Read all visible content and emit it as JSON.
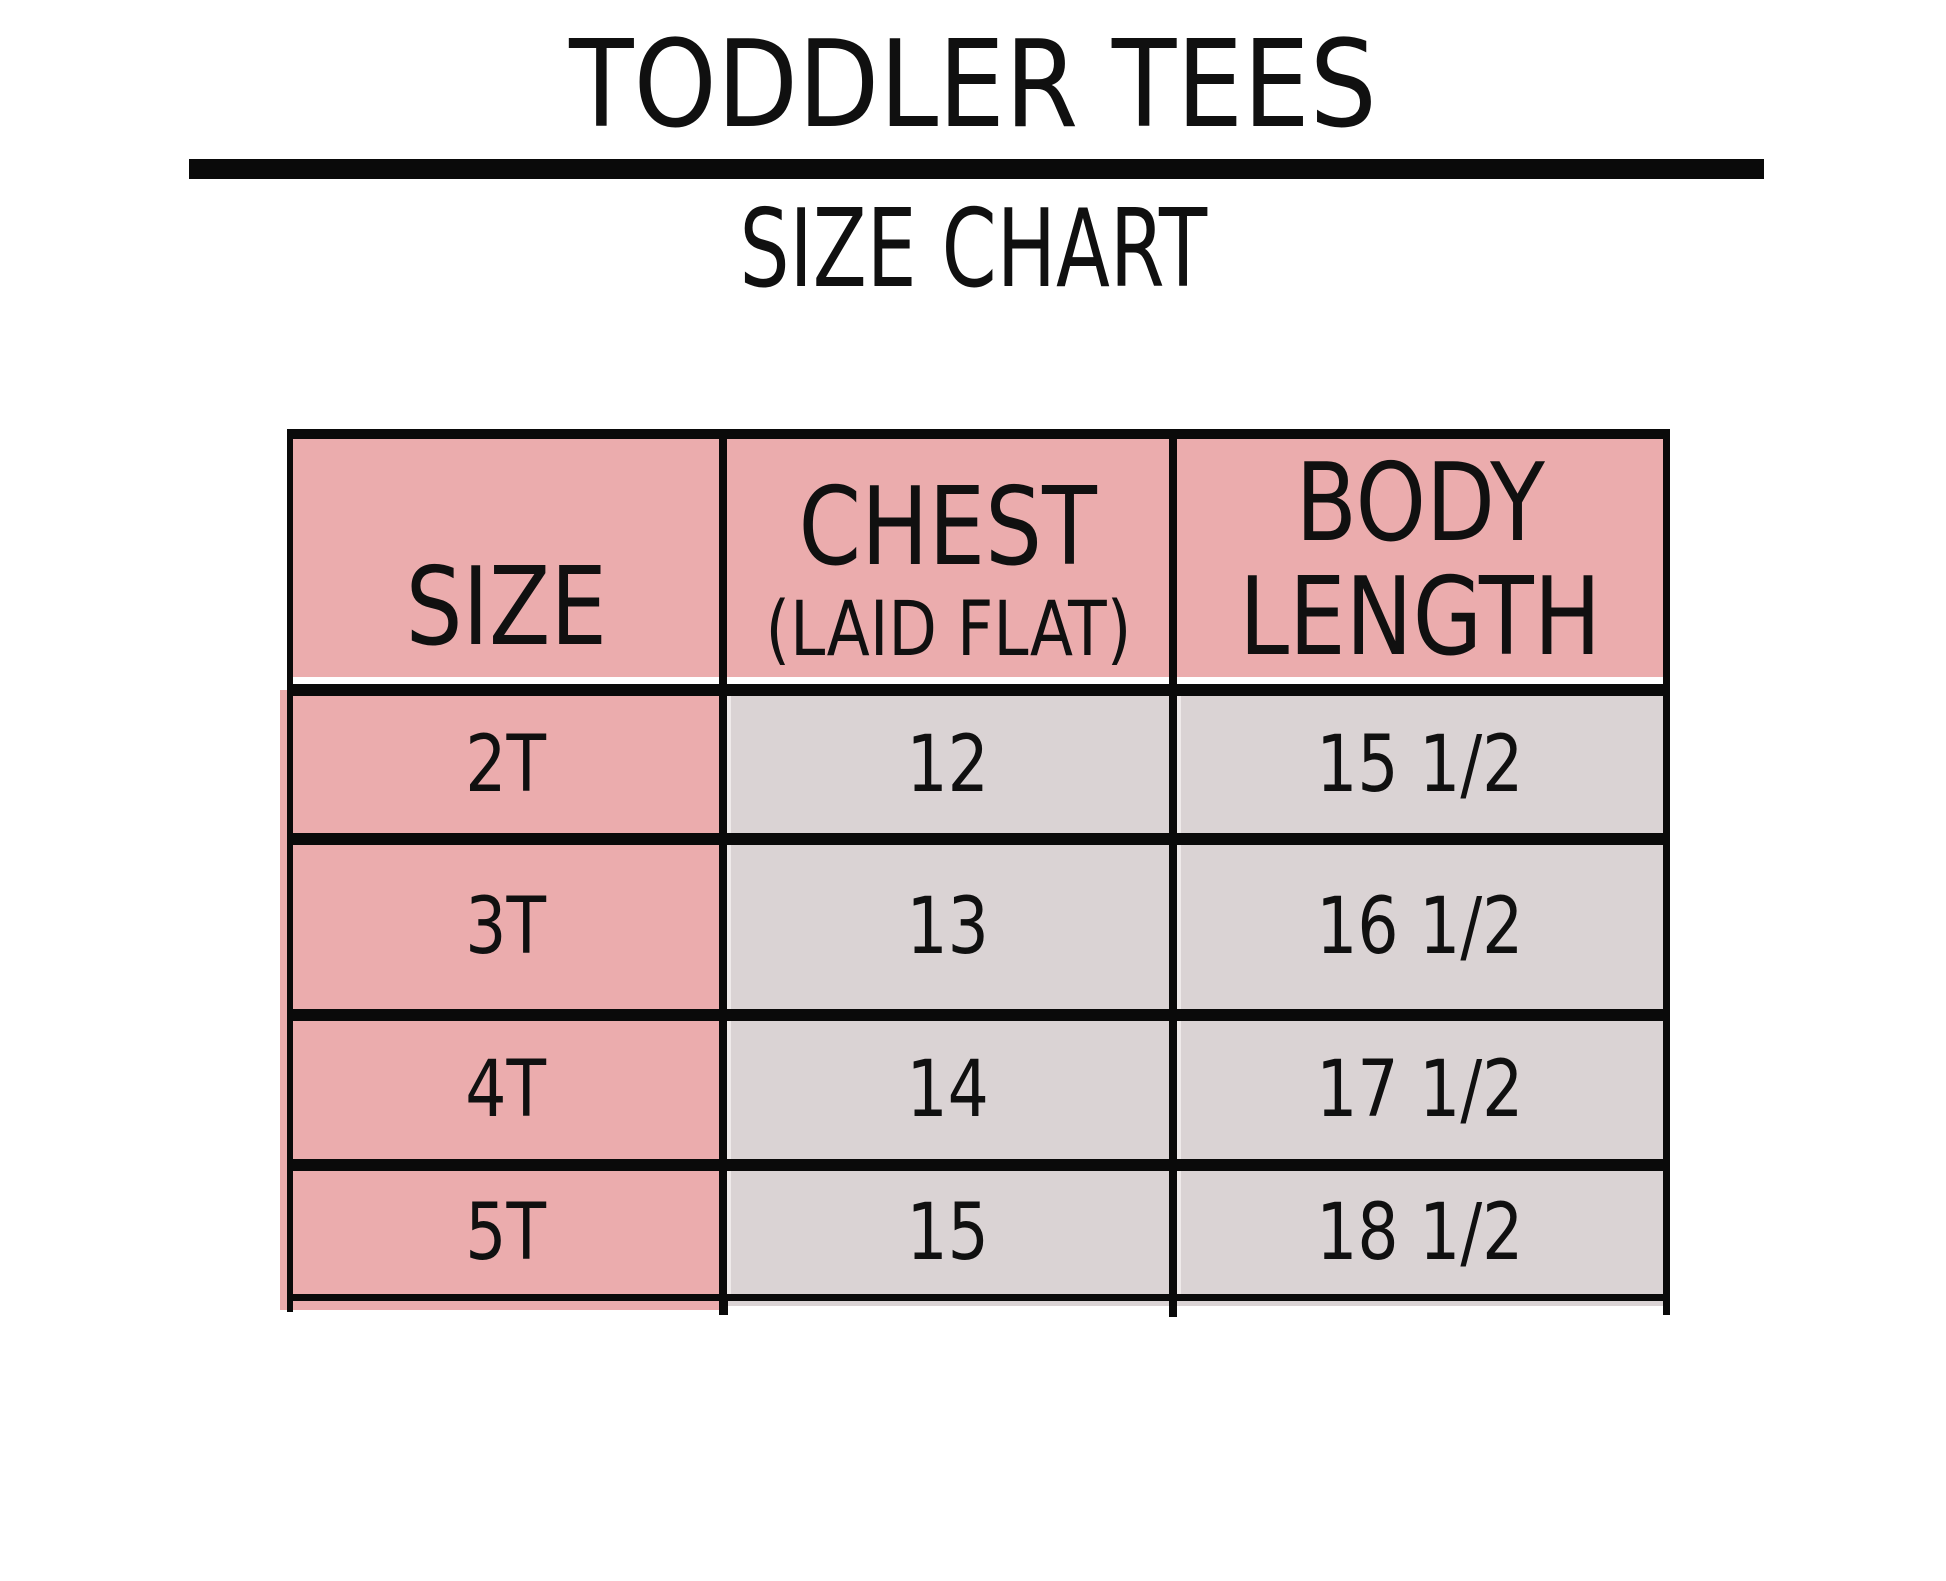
{
  "title": "TODDLER TEES",
  "subtitle": "SIZE CHART",
  "table": {
    "header": {
      "size": "SIZE",
      "chest_line1": "CHEST",
      "chest_line2": "(LAID FLAT)",
      "body_line1": "BODY",
      "body_line2": "LENGTH"
    }
  },
  "chart_data": {
    "type": "table",
    "title": "TODDLER TEES",
    "subtitle": "SIZE CHART",
    "columns": [
      "SIZE",
      "CHEST (LAID FLAT)",
      "BODY LENGTH"
    ],
    "rows": [
      [
        "2T",
        "12",
        "15 1/2"
      ],
      [
        "3T",
        "13",
        "16 1/2"
      ],
      [
        "4T",
        "14",
        "17 1/2"
      ],
      [
        "5T",
        "15",
        "18 1/2"
      ]
    ]
  },
  "colors": {
    "pink": "#EBACAD",
    "gray": "#DAD3D4",
    "line": "#0A0A0A",
    "background": "#FFFFFF"
  }
}
